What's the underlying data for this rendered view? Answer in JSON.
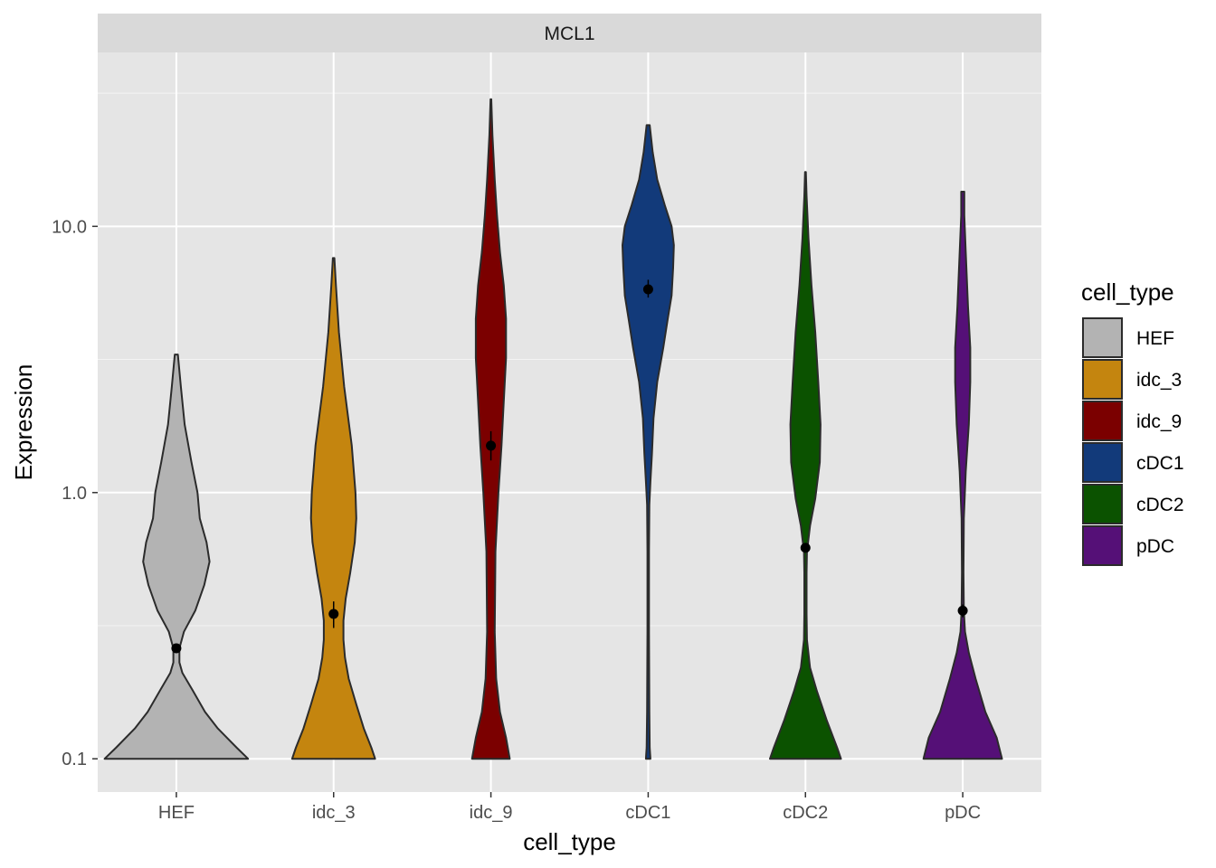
{
  "chart_data": {
    "type": "violin",
    "facet_title": "MCL1",
    "xlabel": "cell_type",
    "ylabel": "Expression",
    "y_scale": "log10",
    "ylim": [
      0.075,
      45
    ],
    "y_ticks": [
      0.1,
      1.0,
      10.0
    ],
    "y_tick_labels": [
      "0.1",
      "1.0",
      "10.0"
    ],
    "grid": true,
    "legend_position": "right",
    "legend_title": "cell_type",
    "categories": [
      "HEF",
      "idc_3",
      "idc_9",
      "cDC1",
      "cDC2",
      "pDC"
    ],
    "series": [
      {
        "name": "HEF",
        "color": "#b3b3b3",
        "max": 3.3,
        "point": 0.26,
        "point_err": [
          0.25,
          0.27
        ],
        "density": [
          [
            0.1,
            0.95
          ],
          [
            0.11,
            0.8
          ],
          [
            0.13,
            0.55
          ],
          [
            0.15,
            0.38
          ],
          [
            0.18,
            0.22
          ],
          [
            0.21,
            0.08
          ],
          [
            0.23,
            0.04
          ],
          [
            0.26,
            0.04
          ],
          [
            0.3,
            0.1
          ],
          [
            0.36,
            0.25
          ],
          [
            0.45,
            0.37
          ],
          [
            0.55,
            0.44
          ],
          [
            0.65,
            0.4
          ],
          [
            0.8,
            0.31
          ],
          [
            1.0,
            0.28
          ],
          [
            1.3,
            0.2
          ],
          [
            1.8,
            0.11
          ],
          [
            2.5,
            0.06
          ],
          [
            3.3,
            0.02
          ]
        ]
      },
      {
        "name": "idc_3",
        "color": "#c4850f",
        "max": 7.6,
        "point": 0.35,
        "point_err": [
          0.31,
          0.39
        ],
        "density": [
          [
            0.1,
            0.55
          ],
          [
            0.11,
            0.5
          ],
          [
            0.13,
            0.4
          ],
          [
            0.16,
            0.3
          ],
          [
            0.2,
            0.2
          ],
          [
            0.24,
            0.15
          ],
          [
            0.28,
            0.13
          ],
          [
            0.33,
            0.13
          ],
          [
            0.4,
            0.16
          ],
          [
            0.5,
            0.22
          ],
          [
            0.65,
            0.28
          ],
          [
            0.8,
            0.3
          ],
          [
            1.0,
            0.29
          ],
          [
            1.5,
            0.24
          ],
          [
            2.5,
            0.14
          ],
          [
            4,
            0.07
          ],
          [
            6,
            0.03
          ],
          [
            7.6,
            0.01
          ]
        ]
      },
      {
        "name": "idc_9",
        "color": "#7b0000",
        "max": 30,
        "point": 1.5,
        "point_err": [
          1.32,
          1.7
        ],
        "density": [
          [
            0.1,
            0.25
          ],
          [
            0.12,
            0.2
          ],
          [
            0.15,
            0.12
          ],
          [
            0.2,
            0.07
          ],
          [
            0.3,
            0.05
          ],
          [
            0.6,
            0.06
          ],
          [
            1.0,
            0.1
          ],
          [
            1.5,
            0.14
          ],
          [
            2.2,
            0.17
          ],
          [
            3.2,
            0.2
          ],
          [
            4.5,
            0.2
          ],
          [
            6,
            0.17
          ],
          [
            8,
            0.12
          ],
          [
            11,
            0.08
          ],
          [
            15,
            0.05
          ],
          [
            22,
            0.02
          ],
          [
            30,
            0.005
          ]
        ]
      },
      {
        "name": "cDC1",
        "color": "#123a7a",
        "max": 24,
        "point": 5.8,
        "point_err": [
          5.4,
          6.3
        ],
        "density": [
          [
            0.1,
            0.03
          ],
          [
            0.11,
            0.02
          ],
          [
            0.15,
            0.015
          ],
          [
            0.3,
            0.01
          ],
          [
            0.6,
            0.01
          ],
          [
            0.9,
            0.015
          ],
          [
            1.1,
            0.03
          ],
          [
            1.4,
            0.05
          ],
          [
            1.9,
            0.07
          ],
          [
            2.6,
            0.12
          ],
          [
            3.5,
            0.2
          ],
          [
            4.5,
            0.26
          ],
          [
            5.5,
            0.31
          ],
          [
            7,
            0.33
          ],
          [
            8.5,
            0.34
          ],
          [
            10,
            0.31
          ],
          [
            12,
            0.22
          ],
          [
            15,
            0.12
          ],
          [
            19,
            0.06
          ],
          [
            24,
            0.02
          ]
        ]
      },
      {
        "name": "cDC2",
        "color": "#0b5200",
        "max": 16,
        "point": 0.62,
        "point_err": [
          0.6,
          0.64
        ],
        "density": [
          [
            0.1,
            0.47
          ],
          [
            0.11,
            0.42
          ],
          [
            0.14,
            0.28
          ],
          [
            0.18,
            0.15
          ],
          [
            0.22,
            0.06
          ],
          [
            0.28,
            0.02
          ],
          [
            0.35,
            0.015
          ],
          [
            0.5,
            0.015
          ],
          [
            0.6,
            0.02
          ],
          [
            0.75,
            0.06
          ],
          [
            0.95,
            0.13
          ],
          [
            1.3,
            0.19
          ],
          [
            1.8,
            0.2
          ],
          [
            2.6,
            0.17
          ],
          [
            4,
            0.13
          ],
          [
            6,
            0.08
          ],
          [
            9,
            0.04
          ],
          [
            13,
            0.015
          ],
          [
            16,
            0.005
          ]
        ]
      },
      {
        "name": "pDC",
        "color": "#551077",
        "max": 13.5,
        "point": 0.36,
        "point_err": [
          0.34,
          0.38
        ],
        "density": [
          [
            0.1,
            0.52
          ],
          [
            0.12,
            0.45
          ],
          [
            0.15,
            0.3
          ],
          [
            0.2,
            0.17
          ],
          [
            0.25,
            0.08
          ],
          [
            0.3,
            0.03
          ],
          [
            0.36,
            0.015
          ],
          [
            0.5,
            0.01
          ],
          [
            0.8,
            0.015
          ],
          [
            1.2,
            0.04
          ],
          [
            1.8,
            0.08
          ],
          [
            2.6,
            0.1
          ],
          [
            3.5,
            0.1
          ],
          [
            5,
            0.07
          ],
          [
            8,
            0.04
          ],
          [
            11,
            0.02
          ],
          [
            13.5,
            0.02
          ]
        ]
      }
    ]
  }
}
